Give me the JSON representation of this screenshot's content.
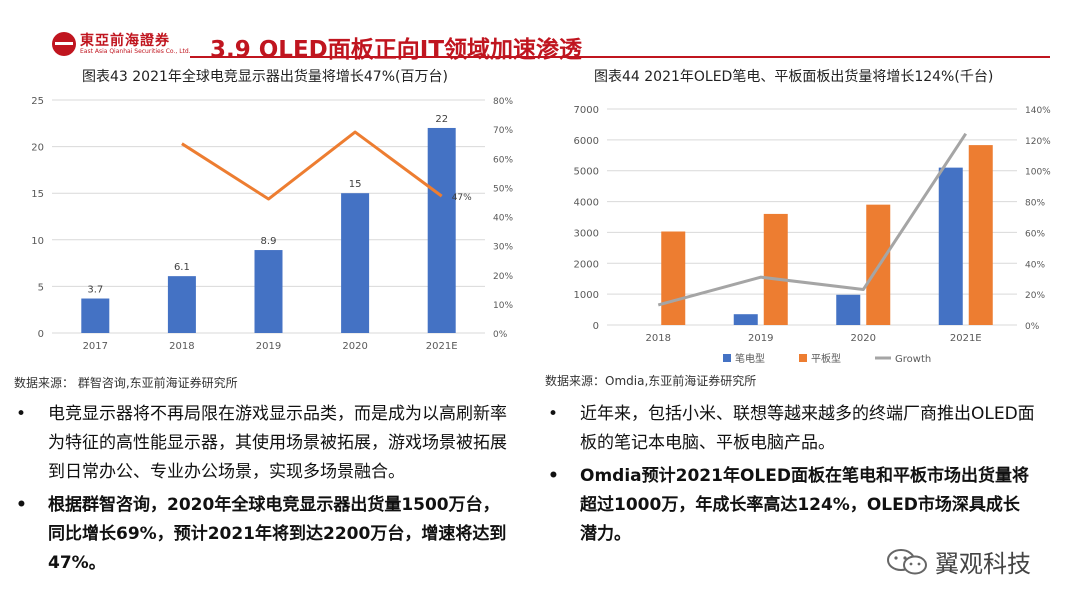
{
  "header": {
    "logo_cn": "東亞前海證券",
    "logo_en": "East Asia Qianhai Securities Co., Ltd.",
    "title": "3.9 OLED面板正向IT领域加速渗透"
  },
  "left": {
    "chart_title": "图表43 2021年全球电竞显示器出货量将增长47%(百万台)",
    "source": "数据来源： 群智咨询,东亚前海证券研究所",
    "bullets": [
      "电竞显示器将不再局限在游戏显示品类，而是成为以高刷新率为特征的高性能显示器，其使用场景被拓展，游戏场景被拓展到日常办公、专业办公场景，实现多场景融合。",
      "根据群智咨询，2020年全球电竞显示器出货量1500万台，同比增长69%，预计2021年将到达2200万台，增速将达到47%。"
    ]
  },
  "right": {
    "chart_title": "图表44 2021年OLED笔电、平板面板出货量将增长124%(千台)",
    "source": "数据来源：Omdia,东亚前海证券研究所",
    "bullets": [
      "近年来，包括小米、联想等越来越多的终端厂商推出OLED面板的笔记本电脑、平板电脑产品。",
      "Omdia预计2021年OLED面板在笔电和平板市场出货量将超过1000万，年成长率高达124%，OLED市场深具成长潜力。"
    ]
  },
  "bullet_symbol": "•",
  "watermark": "翼观科技",
  "chart_data": [
    {
      "type": "bar",
      "categories": [
        "2017",
        "2018",
        "2019",
        "2020",
        "2021E"
      ],
      "series": [
        {
          "values": [
            3.7,
            6.1,
            8.9,
            15,
            22
          ],
          "color": "#4472c4",
          "data_labels": [
            "3.7",
            "6.1",
            "8.9",
            "15",
            "22"
          ]
        },
        {
          "type": "line",
          "axis": "right",
          "values": [
            null,
            65,
            46,
            69,
            47
          ],
          "color": "#ed7d31",
          "data_labels": [
            "",
            "",
            "",
            "",
            "47%"
          ]
        }
      ],
      "ylim": [
        0,
        25
      ],
      "yticks": [
        "0",
        "5",
        "10",
        "15",
        "20",
        "25"
      ],
      "y2lim": [
        0,
        80
      ],
      "y2ticks": [
        "0%",
        "10%",
        "20%",
        "30%",
        "40%",
        "50%",
        "60%",
        "70%",
        "80%"
      ],
      "grid": true,
      "legend": "none"
    },
    {
      "type": "bar",
      "categories": [
        "2018",
        "2019",
        "2020",
        "2021E"
      ],
      "series": [
        {
          "name": "笔电型",
          "values": [
            0,
            350,
            980,
            5100
          ],
          "color": "#4472c4"
        },
        {
          "name": "平板型",
          "values": [
            3030,
            3600,
            3900,
            5830
          ],
          "color": "#ed7d31"
        },
        {
          "name": "Growth",
          "type": "line",
          "axis": "right",
          "values": [
            13,
            31,
            23,
            124
          ],
          "color": "#a5a5a5"
        }
      ],
      "ylim": [
        0,
        7000
      ],
      "yticks": [
        "0",
        "1000",
        "2000",
        "3000",
        "4000",
        "5000",
        "6000",
        "7000"
      ],
      "y2lim": [
        0,
        140
      ],
      "y2ticks": [
        "0%",
        "20%",
        "40%",
        "60%",
        "80%",
        "100%",
        "120%",
        "140%"
      ],
      "grid": true,
      "legend": "bottom"
    }
  ]
}
